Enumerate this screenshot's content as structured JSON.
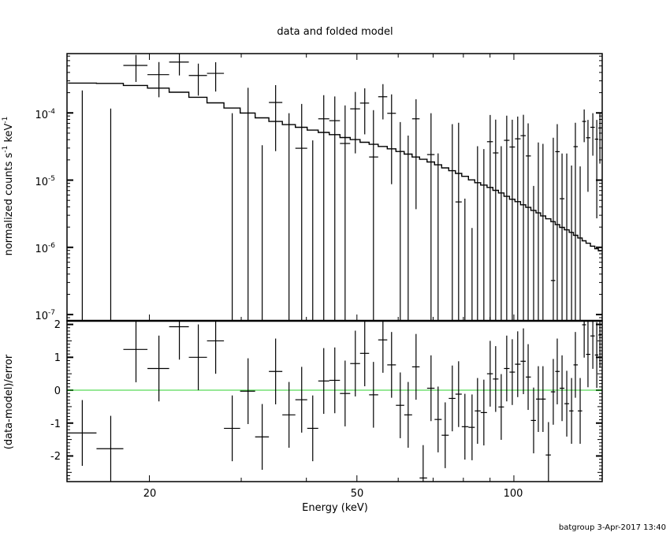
{
  "chart_data": [
    {
      "type": "scatter",
      "panel": "upper",
      "title": "data and folded model",
      "xlabel": "",
      "ylabel": {
        "text": "normalized counts s",
        "sup1": "-1",
        "mid": " keV",
        "sup2": "-1"
      },
      "xscale": "log",
      "yscale": "log",
      "xlim": [
        13.9,
        147.7
      ],
      "ylim": [
        8.07e-08,
        0.000763
      ],
      "ytick_labels": [
        {
          "value": 0.0001,
          "base": "10",
          "exp": "-4"
        },
        {
          "value": 1e-05,
          "base": "10",
          "exp": "-5"
        },
        {
          "value": 1e-06,
          "base": "10",
          "exp": "-6"
        },
        {
          "value": 1e-07,
          "base": "10",
          "exp": "-7"
        }
      ],
      "grid": false,
      "colors": {
        "data": "#000000",
        "model": "#000000"
      },
      "energy_keV": [
        14.87,
        16.86,
        18.85,
        20.86,
        22.83,
        24.82,
        26.8,
        28.83,
        30.92,
        32.91,
        34.92,
        37.05,
        39.18,
        41.14,
        43.19,
        45.35,
        47.46,
        49.65,
        51.76,
        53.79,
        56.09,
        58.27,
        60.55,
        62.7,
        64.92,
        66.99,
        69.36,
        71.56,
        73.84,
        76.19,
        78.34,
        80.55,
        83.13,
        85.17,
        87.58,
        90.06,
        92.27,
        94.56,
        96.89,
        99.29,
        101.7,
        104.3,
        106.5,
        109.1,
        111.4,
        113.7,
        116.5,
        119.0,
        121.1,
        123.7,
        126.3,
        129.0,
        131.2,
        134.0,
        136.4,
        138.7,
        141.7,
        144.2,
        146.2
      ],
      "data": [
        -0.000108,
        -5.8e-05,
        0.000509,
        0.000371,
        0.000571,
        0.000361,
        0.000388,
        -4.9e-05,
        9.95e-05,
        -1.7e-05,
        0.000143,
        -4.9e-05,
        2.98e-05,
        -2e-05,
        8.17e-05,
        7.67e-05,
        3.51e-05,
        0.000115,
        0.00014,
        2.21e-05,
        0.000174,
        9.87e-05,
        -3.7e-05,
        -2.3e-05,
        8.17e-05,
        -0.0001,
        2.4e-05,
        -1.2e-05,
        -5e-05,
        -4.3e-06,
        4.74e-06,
        -2.7e-06,
        -9.6e-07,
        -1.6e-05,
        -1.5e-05,
        3.73e-05,
        2.54e-05,
        -1.6e-05,
        3.91e-05,
        3.11e-05,
        4.12e-05,
        4.59e-05,
        2.29e-05,
        -4.1e-06,
        -9e-06,
        -8.8e-06,
        -3e-05,
        3.21e-07,
        2.65e-05,
        5.29e-06,
        -1.42e-05,
        -2.35e-05,
        3.15e-05,
        -2.4e-05,
        7.47e-05,
        4.27e-05,
        6.11e-05,
        4.07e-05,
        5.96e-05
      ],
      "error": [
        0.000324,
        0.000174,
        0.00022,
        0.0002,
        0.00021,
        0.00018,
        0.00018,
        0.000148,
        0.000137,
        5e-05,
        0.000116,
        0.000148,
        0.000106,
        5.9e-05,
        0.000102,
        9.9e-05,
        9.4e-05,
        9e-05,
        9.2e-05,
        8.8e-05,
        9.4e-05,
        9e-05,
        0.00011,
        6.9e-05,
        7.8e-05,
        9e-05,
        7.5e-05,
        3.7e-05,
        4e-05,
        7.24e-05,
        6.66e-05,
        8e-06,
        2.9e-06,
        4.8e-05,
        4.4e-05,
        5.6e-05,
        5.4e-05,
        4.8e-05,
        5.2e-05,
        4.8e-05,
        4.7e-05,
        4.8e-05,
        4.7e-05,
        1.23e-05,
        4.53e-05,
        4.35e-05,
        2e-05,
        4.24e-05,
        4.16e-05,
        1.96e-05,
        3.91e-05,
        4e-05,
        3.98e-05,
        4e-05,
        3.8e-05,
        3.6e-05,
        3.8e-05,
        3.8e-05,
        4.2e-05
      ],
      "model": [
        0.000278,
        0.000275,
        0.000256,
        0.000234,
        0.000203,
        0.000171,
        0.000141,
        0.000118,
        9.95e-05,
        8.45e-05,
        7.47e-05,
        6.7e-05,
        6.11e-05,
        5.54e-05,
        5.12e-05,
        4.75e-05,
        4.3e-05,
        4.01e-05,
        3.66e-05,
        3.41e-05,
        3.17e-05,
        2.92e-05,
        2.67e-05,
        2.44e-05,
        2.21e-05,
        2.04e-05,
        1.86e-05,
        1.69e-05,
        1.52e-05,
        1.38e-05,
        1.26e-05,
        1.14e-05,
        1.01e-05,
        9.15e-06,
        8.43e-06,
        7.78e-06,
        7.04e-06,
        6.44e-06,
        5.73e-06,
        5.19e-06,
        4.79e-06,
        4.3e-06,
        3.93e-06,
        3.55e-06,
        3.25e-06,
        2.94e-06,
        2.66e-06,
        2.41e-06,
        2.18e-06,
        1.98e-06,
        1.82e-06,
        1.67e-06,
        1.51e-06,
        1.38e-06,
        1.25e-06,
        1.15e-06,
        1.04e-06,
        9.53e-07,
        8.88e-07
      ]
    },
    {
      "type": "scatter",
      "panel": "lower",
      "xlabel": "Energy (keV)",
      "ylabel": "(data-model)/error",
      "xscale": "log",
      "xlim": [
        13.9,
        147.7
      ],
      "ylim": [
        -2.78,
        2.11
      ],
      "xtick_labels": [
        {
          "value": 20,
          "label": "20"
        },
        {
          "value": 50,
          "label": "50"
        },
        {
          "value": 100,
          "label": "100"
        }
      ],
      "ytick_labels": [
        {
          "value": 2,
          "label": "2"
        },
        {
          "value": 1,
          "label": "1"
        },
        {
          "value": 0,
          "label": "0"
        },
        {
          "value": -1,
          "label": "-1"
        },
        {
          "value": -2,
          "label": "-2"
        }
      ],
      "reference_line": 0,
      "grid": false,
      "colors": {
        "data": "#000000",
        "zero_line": "#2fd12f"
      },
      "residual": [
        -1.3,
        -1.78,
        1.24,
        0.66,
        1.93,
        1.0,
        1.5,
        -1.16,
        -0.03,
        -1.42,
        0.57,
        -0.75,
        -0.29,
        -1.16,
        0.28,
        0.3,
        -0.1,
        0.81,
        1.12,
        -0.14,
        1.53,
        0.77,
        -0.46,
        -0.75,
        0.71,
        -2.67,
        0.06,
        -0.89,
        -1.37,
        -0.25,
        -0.12,
        -1.11,
        -1.13,
        -0.63,
        -0.68,
        0.5,
        0.34,
        -0.51,
        0.66,
        0.55,
        0.79,
        0.88,
        0.4,
        -0.92,
        -0.27,
        -0.27,
        -1.97,
        -0.05,
        0.57,
        0.06,
        -0.41,
        -0.63,
        0.77,
        -0.63,
        1.99,
        1.09,
        1.65,
        1.07,
        1.68
      ],
      "residual_error": 1
    }
  ],
  "footer": "batgroup  3-Apr-2017 13:40"
}
